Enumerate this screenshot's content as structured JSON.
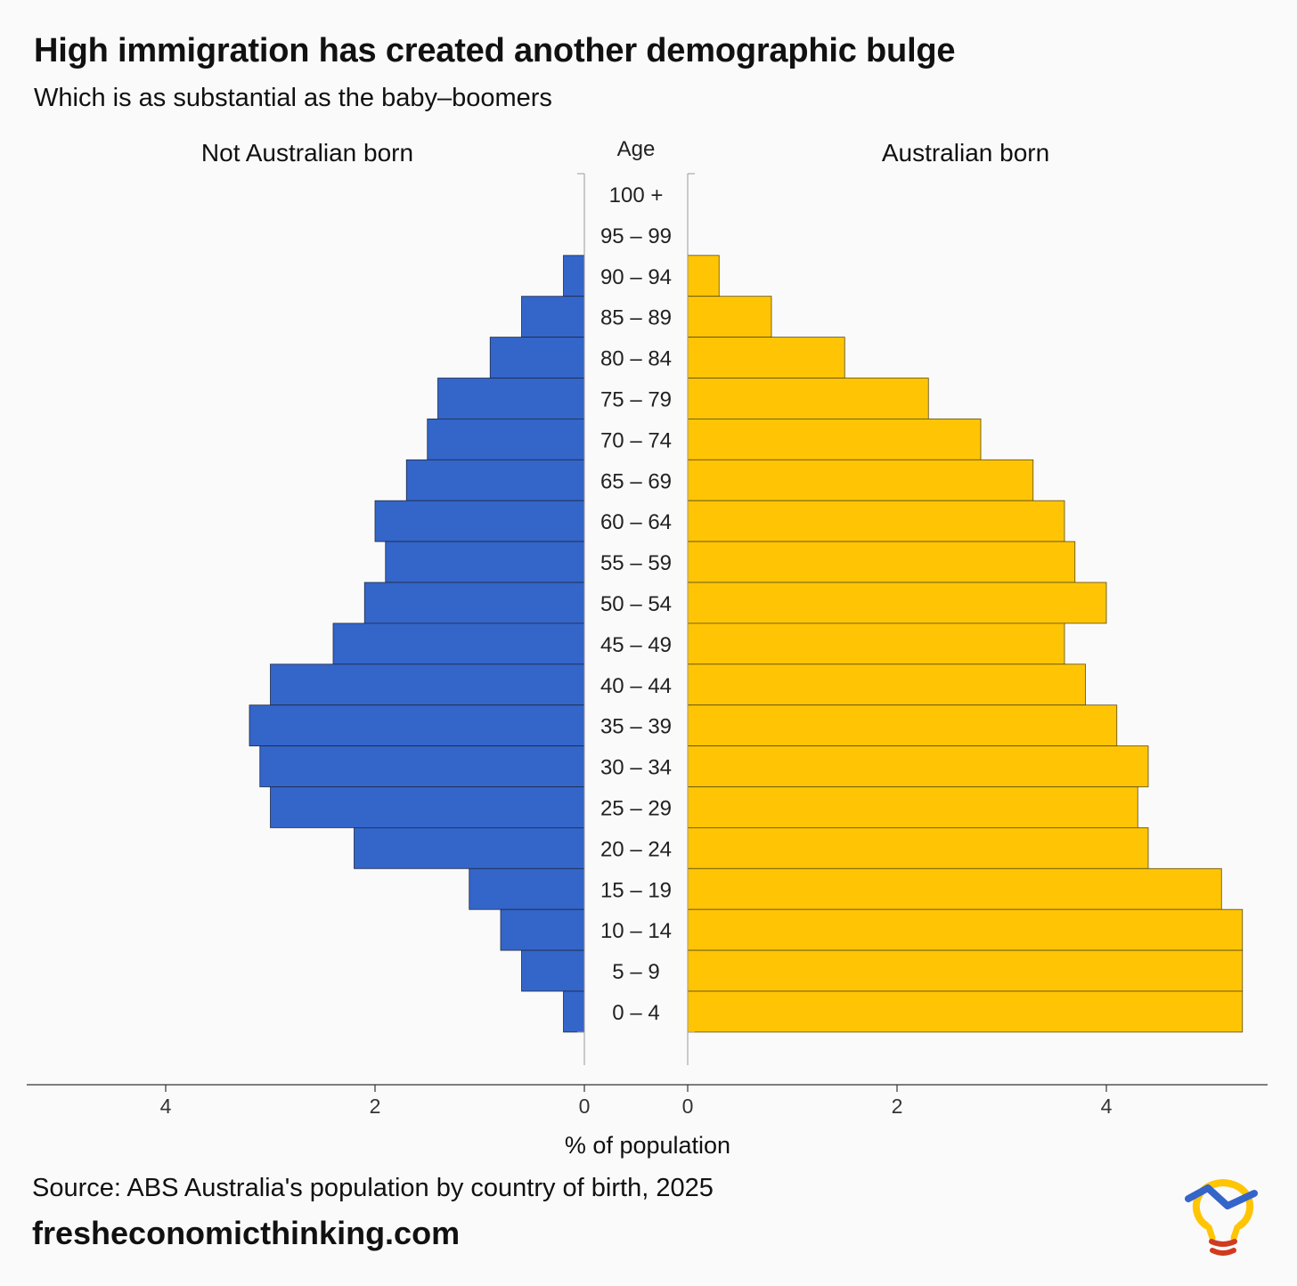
{
  "title": "High immigration has created another demographic bulge",
  "subtitle": "Which is as substantial as the baby–boomers",
  "source": "Source: ABS Australia's population by country of birth, 2025",
  "website": "fresheconomicthinking.com",
  "logo_icon": "lightbulb-chart-icon",
  "chart_data": {
    "type": "bar",
    "orientation": "horizontal-pyramid",
    "age_axis_label": "Age",
    "xlabel": "% of population",
    "categories": [
      "100 +",
      "95 – 99",
      "90 – 94",
      "85 – 89",
      "80 – 84",
      "75 – 79",
      "70 – 74",
      "65 – 69",
      "60 – 64",
      "55 – 59",
      "50 – 54",
      "45 – 49",
      "40 – 44",
      "35 – 39",
      "30 – 34",
      "25 – 29",
      "20 – 24",
      "15 – 19",
      "10 – 14",
      "5 – 9",
      "0 – 4"
    ],
    "series": [
      {
        "name": "Not Australian born",
        "side": "left",
        "color": "#3465c9",
        "values": [
          0,
          0,
          0.2,
          0.6,
          0.9,
          1.4,
          1.5,
          1.7,
          2.0,
          1.9,
          2.1,
          2.4,
          3.0,
          3.2,
          3.1,
          3.0,
          2.2,
          1.1,
          0.8,
          0.6,
          0.2
        ]
      },
      {
        "name": "Australian born",
        "side": "right",
        "color": "#ffc505",
        "values": [
          0,
          0,
          0.3,
          0.8,
          1.5,
          2.3,
          2.8,
          3.3,
          3.6,
          3.7,
          4.0,
          3.6,
          3.8,
          4.1,
          4.4,
          4.3,
          4.4,
          5.1,
          5.3,
          5.3,
          5.3
        ]
      }
    ],
    "left_ticks": [
      4,
      2,
      0
    ],
    "right_ticks": [
      0,
      2,
      4
    ],
    "xlim_left": [
      0,
      5.3
    ],
    "xlim_right": [
      0,
      5.3
    ],
    "grid": false,
    "legend": "panel-titles"
  }
}
